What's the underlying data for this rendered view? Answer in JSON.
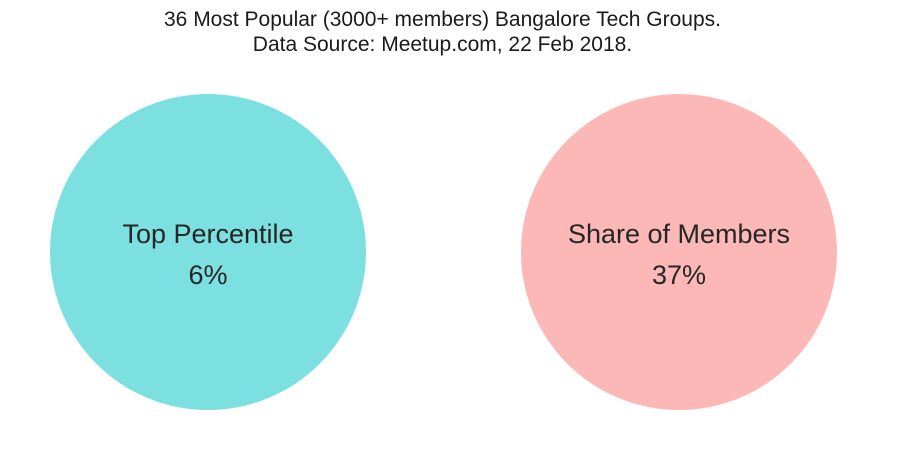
{
  "chart_data": {
    "type": "pie",
    "title": "36 Most Popular (3000+ members) Bangalore Tech Groups.",
    "subtitle": "Data Source: Meetup.com, 22 Feb 2018.",
    "panels": [
      {
        "label": "Top Percentile",
        "value_text": "6%",
        "value": 6,
        "color": "#7de0e0"
      },
      {
        "label": "Share of Members",
        "value_text": "37%",
        "value": 37,
        "color": "#fbb8b6"
      }
    ]
  }
}
